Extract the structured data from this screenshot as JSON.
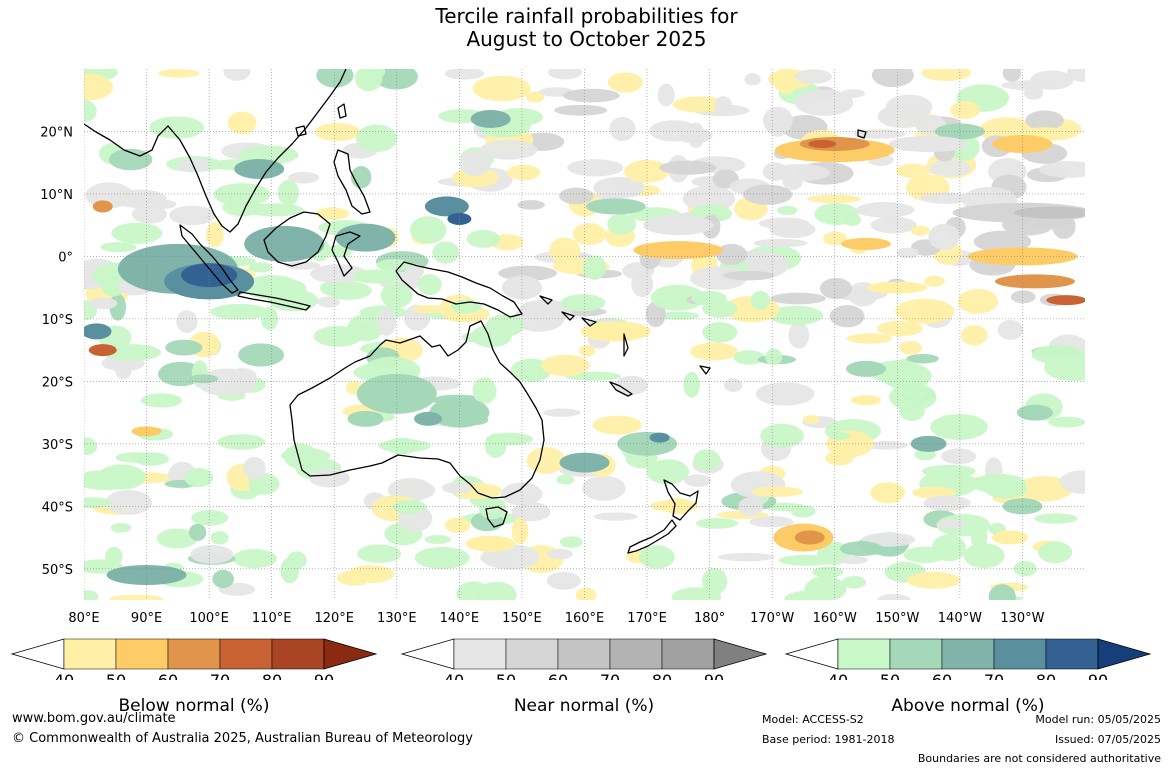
{
  "title": {
    "line1": "Tercile rainfall probabilities for",
    "line2": "August to October 2025"
  },
  "map": {
    "lon_labels": [
      "80°E",
      "90°E",
      "100°E",
      "110°E",
      "120°E",
      "130°E",
      "140°E",
      "150°E",
      "160°E",
      "170°E",
      "180°",
      "170°W",
      "160°W",
      "150°W",
      "140°W",
      "130°W"
    ],
    "lat_labels": [
      "20°N",
      "10°N",
      "0°",
      "10°S",
      "20°S",
      "30°S",
      "40°S",
      "50°S"
    ],
    "lon_range": [
      80,
      240
    ],
    "lat_range": [
      -55,
      30
    ],
    "colors": {
      "below": [
        "#fff0a6",
        "#fdcc66",
        "#e0954a",
        "#c96232",
        "#a94522",
        "#8b2a13"
      ],
      "near": [
        "#e6e6e6",
        "#d5d5d5",
        "#c4c4c4",
        "#b3b3b3",
        "#a1a1a1",
        "#808080"
      ],
      "above": [
        "#c8f7c8",
        "#a4d8b8",
        "#80b4aa",
        "#5a8fa0",
        "#326192",
        "#163e7a"
      ]
    }
  },
  "legends": {
    "ticks": [
      "40",
      "50",
      "60",
      "70",
      "80",
      "90"
    ],
    "below_title": "Below normal (%)",
    "near_title": "Near normal (%)",
    "above_title": "Above normal (%)"
  },
  "footer": {
    "url": "www.bom.gov.au/climate",
    "copyright": "© Commonwealth of Australia 2025, Australian Bureau of Meteorology",
    "model": "Model: ACCESS-S2",
    "base_period": "Base period: 1981-2018",
    "model_run": "Model run: 05/05/2025",
    "issued": "Issued: 07/05/2025",
    "disclaimer": "Boundaries are not considered authoritative"
  }
}
